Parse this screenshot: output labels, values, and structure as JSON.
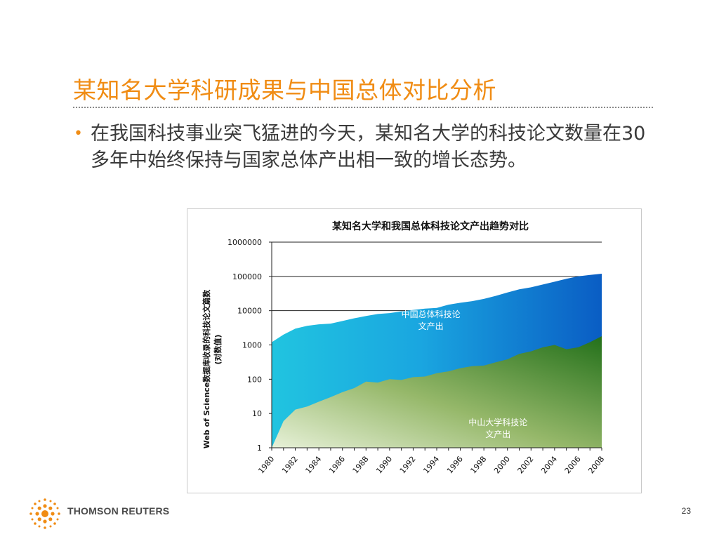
{
  "slide": {
    "title": "某知名大学科研成果与中国总体对比分析",
    "bullet": "在我国科技事业突飞猛进的今天，某知名大学的科技论文数量在30多年中始终保持与国家总体产出相一致的增长态势。",
    "page_number": "23",
    "brand": "THOMSON REUTERS",
    "accent_color": "#f08c14"
  },
  "chart_data": {
    "type": "area",
    "title": "某知名大学和我国总体科技论文产出趋势对比",
    "ylabel_line1": "Web of Science数据库收录的科技论文篇数",
    "ylabel_line2": "(对数值)",
    "y_scale": "log",
    "ylim": [
      1,
      1000000
    ],
    "y_ticks": [
      "1",
      "10",
      "100",
      "1000",
      "10000",
      "100000",
      "1000000"
    ],
    "x": [
      1980,
      1981,
      1982,
      1983,
      1984,
      1985,
      1986,
      1987,
      1988,
      1989,
      1990,
      1991,
      1992,
      1993,
      1994,
      1995,
      1996,
      1997,
      1998,
      1999,
      2000,
      2001,
      2002,
      2003,
      2004,
      2005,
      2006,
      2007,
      2008
    ],
    "x_tick_labels": [
      "1980",
      "1982",
      "1984",
      "1986",
      "1988",
      "1990",
      "1992",
      "1994",
      "1996",
      "1998",
      "2000",
      "2002",
      "2004",
      "2006",
      "2008"
    ],
    "series": [
      {
        "name": "中国总体科技论文产出",
        "label_line1": "中国总体科技论",
        "label_line2": "文产出",
        "color": "#1d8fd6",
        "values": [
          1200,
          2000,
          3000,
          3600,
          4000,
          4200,
          5000,
          6000,
          7000,
          8000,
          8500,
          9500,
          10500,
          11500,
          12000,
          15000,
          17000,
          19000,
          22000,
          27000,
          34000,
          42000,
          48000,
          58000,
          70000,
          85000,
          100000,
          110000,
          120000
        ]
      },
      {
        "name": "中山大学科技论文产出",
        "label_line1": "中山大学科技论",
        "label_line2": "文产出",
        "color": "#3c8a28",
        "values": [
          1,
          6,
          13,
          16,
          22,
          30,
          42,
          55,
          85,
          80,
          100,
          95,
          115,
          120,
          150,
          170,
          210,
          240,
          250,
          310,
          380,
          550,
          650,
          850,
          1000,
          750,
          850,
          1200,
          1800
        ]
      }
    ],
    "grid": "major horizontal lines",
    "legend": "none (inline labels)"
  }
}
